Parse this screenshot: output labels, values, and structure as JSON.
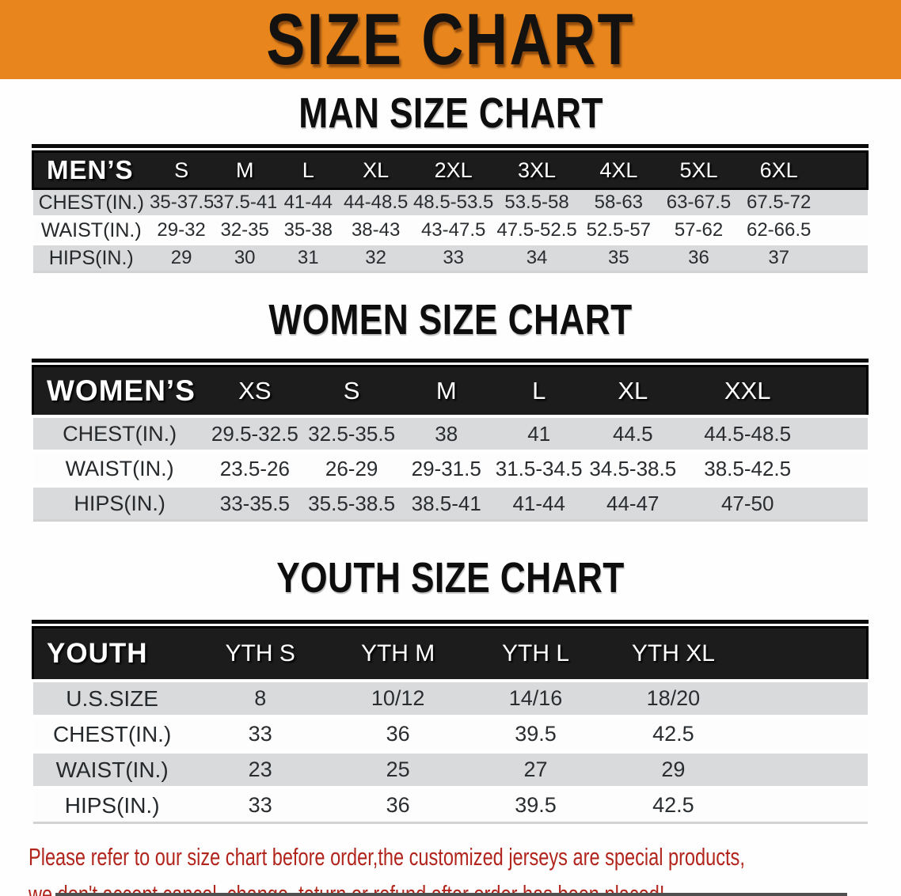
{
  "banner": {
    "title": "SIZE CHART"
  },
  "colors": {
    "banner_bg": "#e8861d",
    "header_bar": "#1c1c1c",
    "row_stripe": "#d9dadc",
    "note_text": "#b1251d"
  },
  "sections": [
    {
      "heading": "MAN SIZE CHART",
      "table": {
        "header_label": "MEN’S",
        "columns": [
          "S",
          "M",
          "L",
          "XL",
          "2XL",
          "3XL",
          "4XL",
          "5XL",
          "6XL"
        ],
        "rows": [
          {
            "label": "CHEST(IN.)",
            "values": [
              "35-37.5",
              "37.5-41",
              "41-44",
              "44-48.5",
              "48.5-53.5",
              "53.5-58",
              "58-63",
              "63-67.5",
              "67.5-72"
            ]
          },
          {
            "label": "WAIST(IN.)",
            "values": [
              "29-32",
              "32-35",
              "35-38",
              "38-43",
              "43-47.5",
              "47.5-52.5",
              "52.5-57",
              "57-62",
              "62-66.5"
            ]
          },
          {
            "label": "HIPS(IN.)",
            "values": [
              "29",
              "30",
              "31",
              "32",
              "33",
              "34",
              "35",
              "36",
              "37"
            ]
          }
        ]
      }
    },
    {
      "heading": "WOMEN SIZE CHART",
      "table": {
        "header_label": "WOMEN’S",
        "columns": [
          "XS",
          "S",
          "M",
          "L",
          "XL",
          "XXL"
        ],
        "rows": [
          {
            "label": "CHEST(IN.)",
            "values": [
              "29.5-32.5",
              "32.5-35.5",
              "38",
              "41",
              "44.5",
              "44.5-48.5"
            ]
          },
          {
            "label": "WAIST(IN.)",
            "values": [
              "23.5-26",
              "26-29",
              "29-31.5",
              "31.5-34.5",
              "34.5-38.5",
              "38.5-42.5"
            ]
          },
          {
            "label": "HIPS(IN.)",
            "values": [
              "33-35.5",
              "35.5-38.5",
              "38.5-41",
              "41-44",
              "44-47",
              "47-50"
            ]
          }
        ]
      }
    },
    {
      "heading": "YOUTH SIZE CHART",
      "table": {
        "header_label": "YOUTH",
        "columns": [
          "YTH S",
          "YTH M",
          "YTH L",
          "YTH XL"
        ],
        "rows": [
          {
            "label": "U.S.SIZE",
            "values": [
              "8",
              "10/12",
              "14/16",
              "18/20"
            ]
          },
          {
            "label": "CHEST(IN.)",
            "values": [
              "33",
              "36",
              "39.5",
              "42.5"
            ]
          },
          {
            "label": "WAIST(IN.)",
            "values": [
              "23",
              "25",
              "27",
              "29"
            ]
          },
          {
            "label": "HIPS(IN.)",
            "values": [
              "33",
              "36",
              "39.5",
              "42.5"
            ]
          }
        ]
      }
    }
  ],
  "note": {
    "line1": "Please refer to our size chart before order,the customized jerseys are special products,",
    "line2": "we don't accept cancel, change, teturn or refund after order has been placed!"
  }
}
